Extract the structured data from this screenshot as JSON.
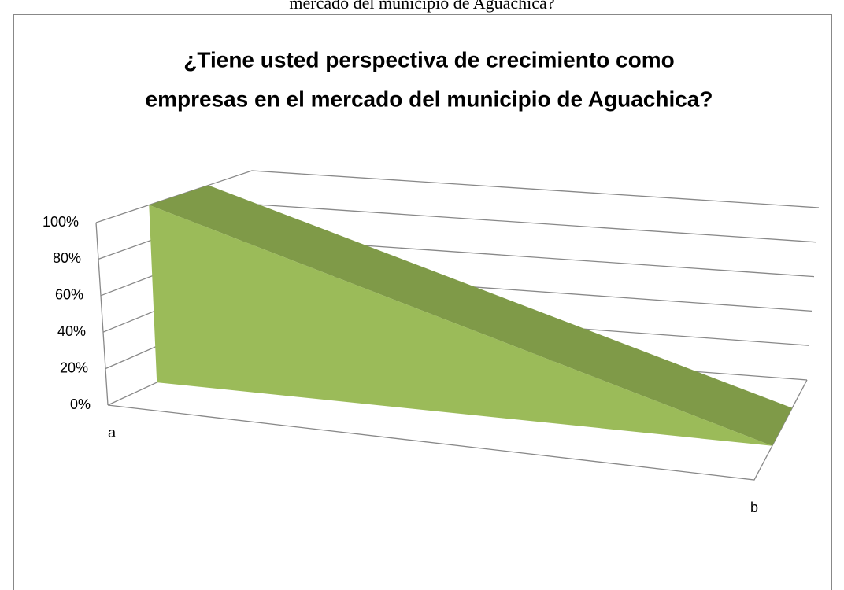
{
  "caption": "mercado del municipio de Aguachica?",
  "chart_data": {
    "type": "area",
    "title": [
      "¿Tiene usted perspectiva de crecimiento como",
      "empresas en el mercado del municipio de Aguachica?"
    ],
    "categories": [
      "a",
      "b"
    ],
    "values": [
      100,
      0
    ],
    "color": "#9bbb59",
    "ylim": [
      0,
      100
    ],
    "yticks": [
      {
        "value": 0,
        "label": "0%"
      },
      {
        "value": 20,
        "label": "20%"
      },
      {
        "value": 40,
        "label": "40%"
      },
      {
        "value": 60,
        "label": "60%"
      },
      {
        "value": 80,
        "label": "80%"
      },
      {
        "value": 100,
        "label": "100%"
      }
    ],
    "grid": true
  }
}
